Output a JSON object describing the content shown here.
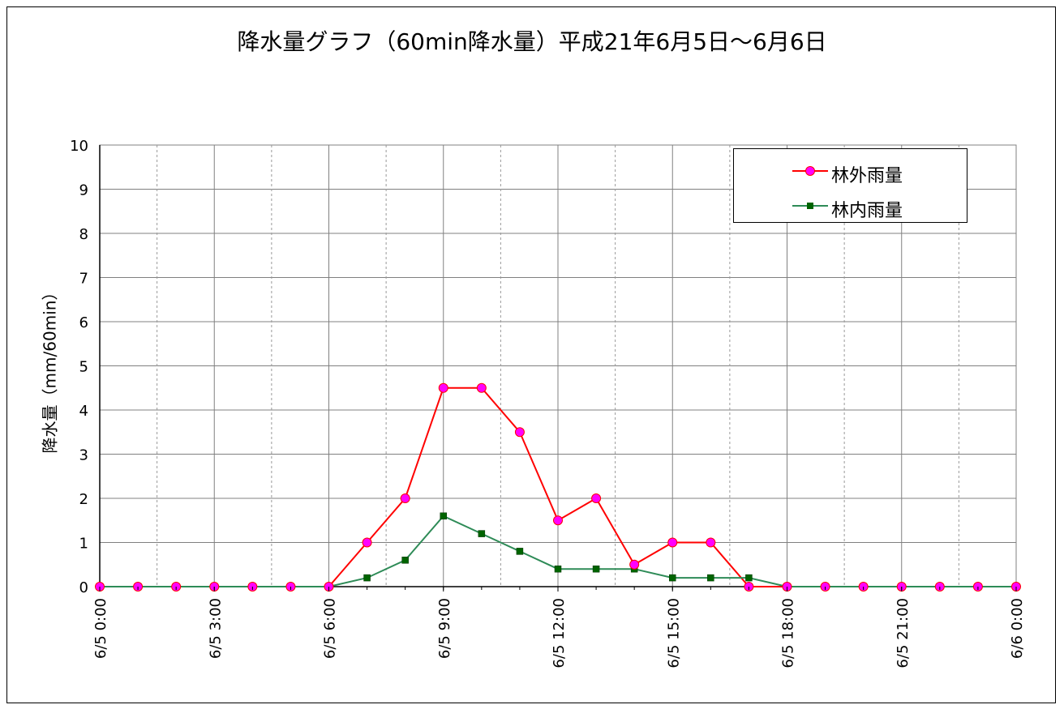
{
  "chart_data": {
    "type": "line",
    "title": "降水量グラフ（60min降水量）平成21年6月5日～6月6日",
    "ylabel": "降水量（mm/60min）",
    "xlabel": "",
    "ylim": [
      0,
      10
    ],
    "yticks": [
      "0",
      "1",
      "2",
      "3",
      "4",
      "5",
      "6",
      "7",
      "8",
      "9",
      "10"
    ],
    "x_tick_labels": [
      "6/5 0:00",
      "6/5 3:00",
      "6/5 6:00",
      "6/5 9:00",
      "6/5 12:00",
      "6/5 15:00",
      "6/5 18:00",
      "6/5 21:00",
      "6/6 0:00"
    ],
    "x_tick_hours": [
      0,
      3,
      6,
      9,
      12,
      15,
      18,
      21,
      24
    ],
    "x_hours": [
      0,
      1,
      2,
      3,
      4,
      5,
      6,
      7,
      8,
      9,
      10,
      11,
      12,
      13,
      14,
      15,
      16,
      17,
      18,
      19,
      20,
      21,
      22,
      23,
      24
    ],
    "grid": true,
    "legend_position": "top-right",
    "series": [
      {
        "name": "林外雨量",
        "color": "#ff0000",
        "marker_color": "#ff00ff",
        "marker": "circle",
        "values": [
          0,
          0,
          0,
          0,
          0,
          0,
          0,
          1,
          2,
          4.5,
          4.5,
          3.5,
          1.5,
          2,
          0.5,
          1,
          1,
          0,
          0,
          0,
          0,
          0,
          0,
          0,
          0
        ]
      },
      {
        "name": "林内雨量",
        "color": "#2e8b57",
        "marker_color": "#006400",
        "marker": "square",
        "values": [
          0,
          0,
          0,
          0,
          0,
          0,
          0,
          0.2,
          0.6,
          1.6,
          1.2,
          0.8,
          0.4,
          0.4,
          0.4,
          0.2,
          0.2,
          0.2,
          0,
          0,
          0,
          0,
          0,
          0,
          0
        ]
      }
    ]
  }
}
